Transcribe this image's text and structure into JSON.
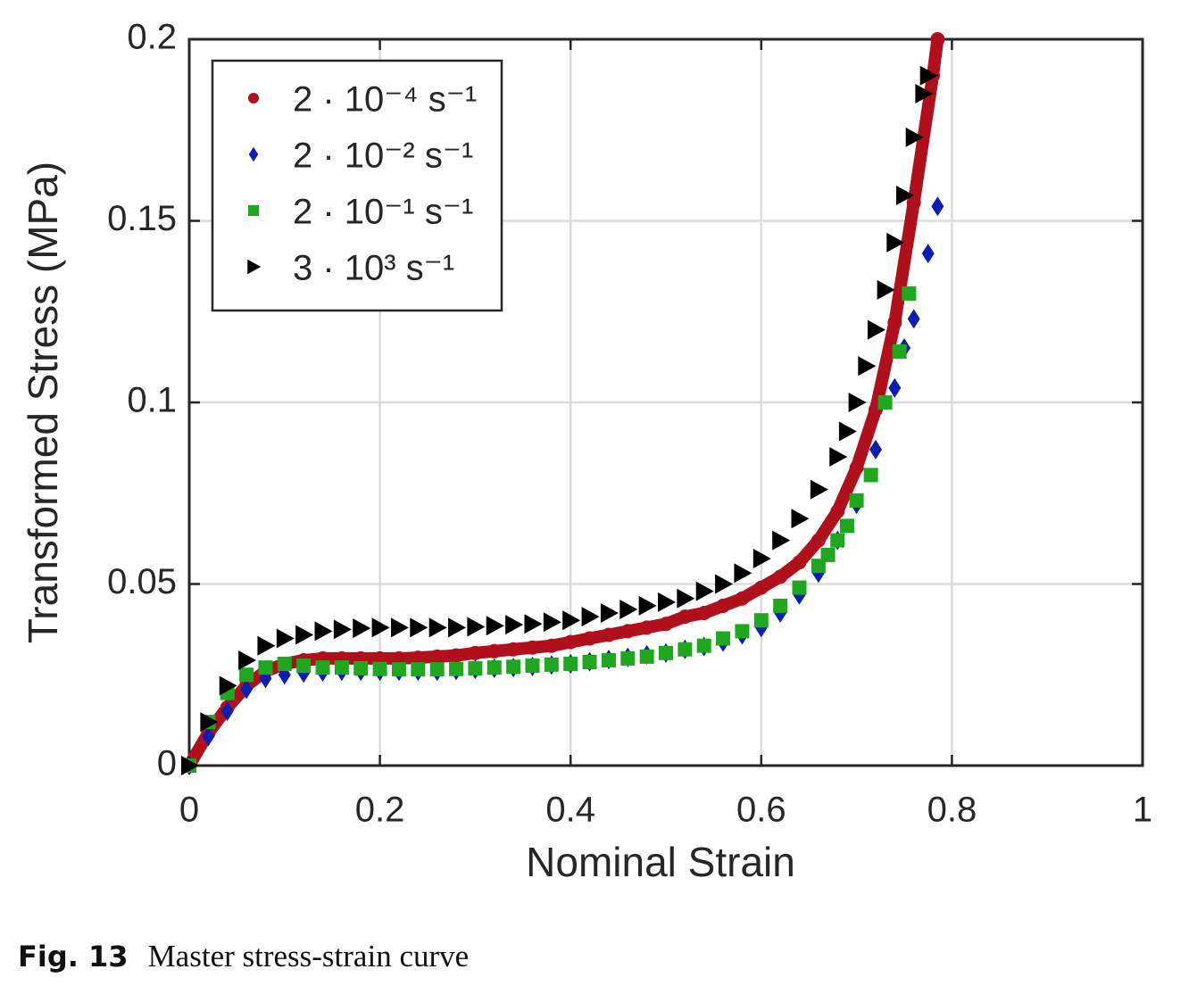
{
  "chart_data": {
    "type": "scatter",
    "xlabel": "Nominal Strain",
    "ylabel": "Transformed Stress (MPa)",
    "xlim": [
      0,
      1
    ],
    "xticks": [
      0,
      0.2,
      0.4,
      0.6,
      0.8,
      1
    ],
    "ylim": [
      0,
      0.2
    ],
    "yticks": [
      0,
      0.05,
      0.1,
      0.15,
      0.2
    ],
    "grid": true,
    "legend": "upper left",
    "series": [
      {
        "name": "2 · 10⁻⁴ s⁻¹",
        "color": "#b0101c",
        "marker": "circle",
        "x": [
          0,
          0.02,
          0.04,
          0.06,
          0.08,
          0.1,
          0.12,
          0.14,
          0.16,
          0.18,
          0.2,
          0.22,
          0.24,
          0.26,
          0.28,
          0.3,
          0.32,
          0.34,
          0.36,
          0.38,
          0.4,
          0.42,
          0.44,
          0.46,
          0.48,
          0.5,
          0.52,
          0.54,
          0.56,
          0.58,
          0.6,
          0.62,
          0.64,
          0.66,
          0.68,
          0.7,
          0.72,
          0.74,
          0.76,
          0.78,
          0.785
        ],
        "values": [
          0,
          0.009,
          0.016,
          0.022,
          0.026,
          0.028,
          0.029,
          0.0295,
          0.0295,
          0.0295,
          0.0295,
          0.0295,
          0.0297,
          0.03,
          0.0303,
          0.031,
          0.0315,
          0.032,
          0.0325,
          0.033,
          0.034,
          0.035,
          0.036,
          0.037,
          0.038,
          0.039,
          0.041,
          0.042,
          0.044,
          0.046,
          0.049,
          0.052,
          0.056,
          0.062,
          0.07,
          0.082,
          0.098,
          0.122,
          0.155,
          0.19,
          0.2
        ]
      },
      {
        "name": "2 · 10⁻² s⁻¹",
        "color": "#0a1eb4",
        "marker": "diamond",
        "x": [
          0,
          0.02,
          0.04,
          0.06,
          0.08,
          0.1,
          0.12,
          0.14,
          0.16,
          0.18,
          0.2,
          0.22,
          0.24,
          0.26,
          0.28,
          0.3,
          0.32,
          0.34,
          0.36,
          0.38,
          0.4,
          0.42,
          0.44,
          0.46,
          0.48,
          0.5,
          0.52,
          0.54,
          0.56,
          0.58,
          0.6,
          0.62,
          0.64,
          0.66,
          0.68,
          0.7,
          0.72,
          0.74,
          0.75,
          0.76,
          0.775,
          0.785
        ],
        "values": [
          0,
          0.008,
          0.015,
          0.021,
          0.024,
          0.025,
          0.0255,
          0.0258,
          0.026,
          0.026,
          0.026,
          0.026,
          0.026,
          0.026,
          0.0262,
          0.0265,
          0.0268,
          0.027,
          0.0273,
          0.0277,
          0.028,
          0.0286,
          0.0292,
          0.0298,
          0.0305,
          0.031,
          0.032,
          0.0328,
          0.034,
          0.036,
          0.038,
          0.042,
          0.047,
          0.053,
          0.062,
          0.072,
          0.087,
          0.104,
          0.115,
          0.123,
          0.141,
          0.154
        ]
      },
      {
        "name": "2 · 10⁻¹ s⁻¹",
        "color": "#1fa81f",
        "marker": "square",
        "x": [
          0,
          0.02,
          0.04,
          0.06,
          0.08,
          0.1,
          0.12,
          0.14,
          0.16,
          0.18,
          0.2,
          0.22,
          0.24,
          0.26,
          0.28,
          0.3,
          0.32,
          0.34,
          0.36,
          0.38,
          0.4,
          0.42,
          0.44,
          0.46,
          0.48,
          0.5,
          0.52,
          0.54,
          0.56,
          0.58,
          0.6,
          0.62,
          0.64,
          0.66,
          0.67,
          0.68,
          0.69,
          0.7,
          0.715,
          0.73,
          0.745,
          0.755
        ],
        "values": [
          0,
          0.012,
          0.02,
          0.025,
          0.027,
          0.028,
          0.0275,
          0.027,
          0.027,
          0.0268,
          0.0266,
          0.0265,
          0.0265,
          0.0265,
          0.0266,
          0.0268,
          0.027,
          0.0272,
          0.0275,
          0.0278,
          0.028,
          0.0285,
          0.029,
          0.0295,
          0.03,
          0.031,
          0.032,
          0.033,
          0.035,
          0.037,
          0.04,
          0.044,
          0.049,
          0.055,
          0.058,
          0.062,
          0.066,
          0.073,
          0.08,
          0.1,
          0.114,
          0.13
        ]
      },
      {
        "name": "3 · 10³ s⁻¹",
        "color": "#000000",
        "marker": "triangle-right",
        "x": [
          0,
          0.02,
          0.04,
          0.06,
          0.08,
          0.1,
          0.12,
          0.14,
          0.16,
          0.18,
          0.2,
          0.22,
          0.24,
          0.26,
          0.28,
          0.3,
          0.32,
          0.34,
          0.36,
          0.38,
          0.4,
          0.42,
          0.44,
          0.46,
          0.48,
          0.5,
          0.52,
          0.54,
          0.56,
          0.58,
          0.6,
          0.62,
          0.64,
          0.66,
          0.68,
          0.69,
          0.7,
          0.71,
          0.72,
          0.73,
          0.74,
          0.75,
          0.76,
          0.77,
          0.775
        ],
        "values": [
          0,
          0.012,
          0.022,
          0.029,
          0.033,
          0.035,
          0.036,
          0.037,
          0.0375,
          0.0378,
          0.038,
          0.038,
          0.038,
          0.038,
          0.038,
          0.0382,
          0.0385,
          0.0388,
          0.039,
          0.0395,
          0.04,
          0.041,
          0.042,
          0.043,
          0.044,
          0.045,
          0.046,
          0.048,
          0.05,
          0.053,
          0.057,
          0.062,
          0.068,
          0.076,
          0.085,
          0.092,
          0.1,
          0.11,
          0.12,
          0.131,
          0.144,
          0.157,
          0.173,
          0.185,
          0.19
        ]
      }
    ]
  },
  "caption": {
    "label": "Fig. 13",
    "text": "Master stress-strain curve"
  }
}
